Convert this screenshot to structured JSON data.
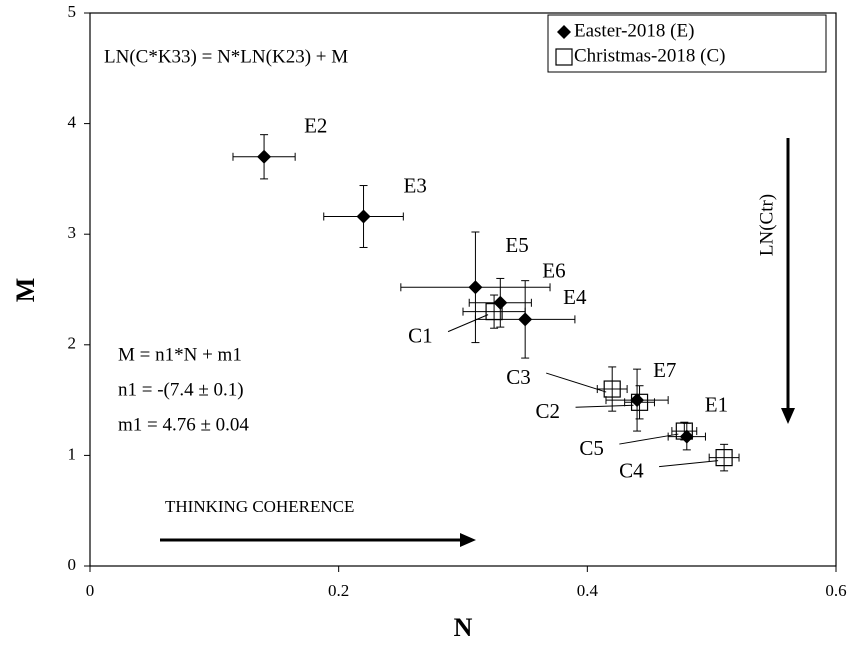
{
  "chart_data": {
    "type": "scatter",
    "xlabel": "N",
    "ylabel": "M",
    "xlim": [
      0,
      0.6
    ],
    "ylim": [
      0,
      5
    ],
    "xticks": [
      0,
      0.2,
      0.4,
      0.6
    ],
    "yticks": [
      0,
      1,
      2,
      3,
      4,
      5
    ],
    "legend": "upper right",
    "series": [
      {
        "name": "Easter-2018 (E)",
        "marker": "diamond",
        "color": "#000000",
        "x": [
          0.14,
          0.22,
          0.31,
          0.33,
          0.35,
          0.44,
          0.48
        ],
        "values": [
          3.7,
          3.16,
          2.52,
          2.38,
          2.23,
          1.5,
          1.17
        ],
        "xerr": [
          0.025,
          0.032,
          0.06,
          0.025,
          0.04,
          0.025,
          0.015
        ],
        "yerr": [
          0.2,
          0.28,
          0.5,
          0.22,
          0.35,
          0.28,
          0.12
        ],
        "labels": [
          "E2",
          "E3",
          "E5",
          "E6",
          "E4",
          "E7",
          "E1"
        ]
      },
      {
        "name": "Christmas-2018 (C)",
        "marker": "square",
        "color": "#000000",
        "x": [
          0.325,
          0.42,
          0.442,
          0.478,
          0.51
        ],
        "values": [
          2.3,
          1.6,
          1.48,
          1.22,
          0.98
        ],
        "xerr": [
          0.025,
          0.012,
          0.012,
          0.01,
          0.012
        ],
        "yerr": [
          0.15,
          0.2,
          0.15,
          0.08,
          0.12
        ],
        "labels": [
          "C1",
          "C3",
          "C2",
          "C5",
          "C4"
        ]
      }
    ],
    "annotations": [
      "LN(C*K33) = N*LN(K23)  +  M",
      "M = n1*N + m1",
      "n1 = -(7.4 ± 0.1)",
      "m1 = 4.76 ± 0.04",
      "THINKING  COHERENCE",
      "LN(Ctr)"
    ]
  }
}
